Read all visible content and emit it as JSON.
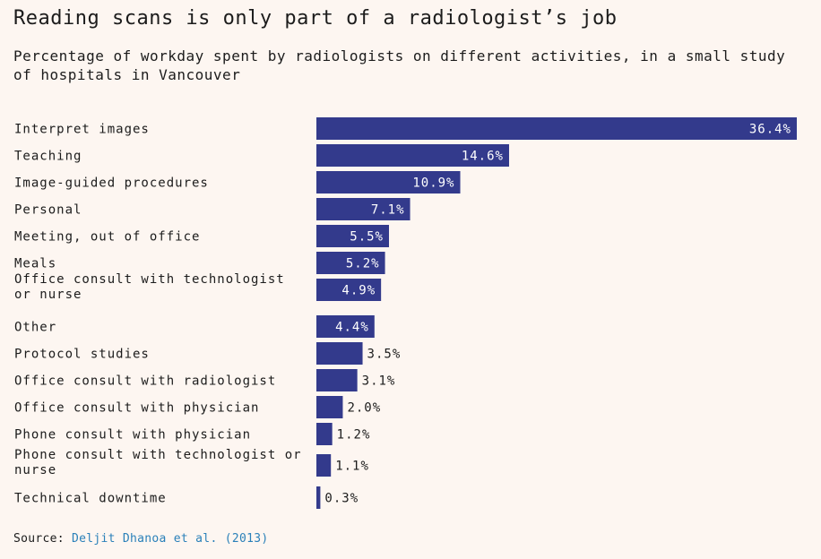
{
  "chart_data": {
    "type": "bar",
    "orientation": "horizontal",
    "title": "Reading scans is only part of a radiologist’s job",
    "subtitle": "Percentage of workday spent by radiologists on different activities, in a small study of hospitals in Vancouver",
    "categories": [
      "Interpret images",
      "Teaching",
      "Image-guided procedures",
      "Personal",
      "Meeting, out of office",
      "Meals",
      "Office consult with technologist or nurse",
      "Other",
      "Protocol studies",
      "Office consult with radiologist",
      "Office consult with physician",
      "Phone consult with physician",
      "Phone consult with technologist or nurse",
      "Technical downtime"
    ],
    "values": [
      36.4,
      14.6,
      10.9,
      7.1,
      5.5,
      5.2,
      4.9,
      4.4,
      3.5,
      3.1,
      2.0,
      1.2,
      1.1,
      0.3
    ],
    "value_labels": [
      "36.4%",
      "14.6%",
      "10.9%",
      "7.1%",
      "5.5%",
      "5.2%",
      "4.9%",
      "4.4%",
      "3.5%",
      "3.1%",
      "2.0%",
      "1.2%",
      "1.1%",
      "0.3%"
    ],
    "xlim": [
      0,
      36.4
    ],
    "grid": false,
    "bar_color": "#333a8c"
  },
  "source": {
    "label": "Source:",
    "text": "Deljit Dhanoa et al. (2013)",
    "link_color": "#2a80b9"
  }
}
